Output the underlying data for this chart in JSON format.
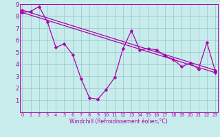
{
  "xlabel": "Windchill (Refroidissement éolien,°C)",
  "x_values": [
    0,
    1,
    2,
    3,
    4,
    5,
    6,
    7,
    8,
    9,
    10,
    11,
    12,
    13,
    14,
    15,
    16,
    17,
    18,
    19,
    20,
    21,
    22,
    23
  ],
  "y_zigzag": [
    8.3,
    8.4,
    8.8,
    7.5,
    5.4,
    5.7,
    4.8,
    2.8,
    1.2,
    1.1,
    1.9,
    2.9,
    5.3,
    6.8,
    5.2,
    5.3,
    5.2,
    4.7,
    4.4,
    3.8,
    4.1,
    3.6,
    5.8,
    3.4
  ],
  "trend1_start": 8.5,
  "trend1_end": 3.5,
  "trend2_start": 8.3,
  "trend2_end": 3.3,
  "color": "#aa00aa",
  "bg_color": "#c8ecec",
  "grid_color": "#99cccc",
  "ylim_min": 0,
  "ylim_max": 9,
  "xlim_min": 0,
  "xlim_max": 23,
  "yticks": [
    1,
    2,
    3,
    4,
    5,
    6,
    7,
    8,
    9
  ],
  "xticks": [
    0,
    1,
    2,
    3,
    4,
    5,
    6,
    7,
    8,
    9,
    10,
    11,
    12,
    13,
    14,
    15,
    16,
    17,
    18,
    19,
    20,
    21,
    22,
    23
  ],
  "xlabel_fontsize": 5.5,
  "tick_fontsize_x": 4.8,
  "tick_fontsize_y": 6.0,
  "linewidth": 0.9,
  "markersize": 2.5
}
